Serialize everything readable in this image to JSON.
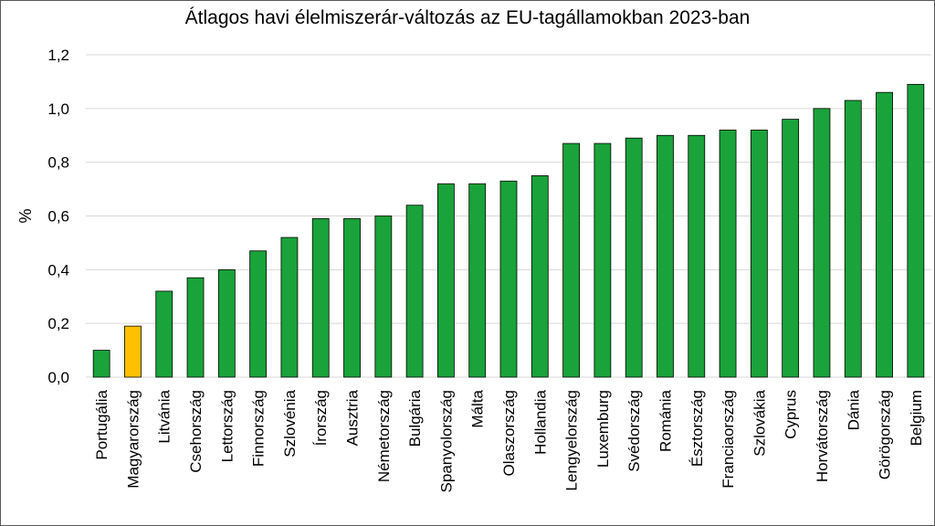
{
  "chart_data": {
    "type": "bar",
    "title": "Átlagos havi élelmiszerár-változás az EU-tagállamokban 2023-ban",
    "xlabel": "",
    "ylabel": "%",
    "ylim": [
      0,
      1.2
    ],
    "yticks": [
      "0,0",
      "0,2",
      "0,4",
      "0,6",
      "0,8",
      "1,0",
      "1,2"
    ],
    "grid": true,
    "legend": "none",
    "categories": [
      "Portugália",
      "Magyarország",
      "Litvánia",
      "Csehország",
      "Lettország",
      "Finnország",
      "Szlovénia",
      "Írország",
      "Ausztria",
      "Németország",
      "Bulgária",
      "Spanyolország",
      "Málta",
      "Olaszország",
      "Hollandia",
      "Lengyelország",
      "Luxemburg",
      "Svédország",
      "Románia",
      "Észtország",
      "Franciaország",
      "Szlovákia",
      "Cyprus",
      "Horvátország",
      "Dánia",
      "Görögország",
      "Belgium"
    ],
    "values": [
      0.1,
      0.19,
      0.32,
      0.37,
      0.4,
      0.47,
      0.52,
      0.59,
      0.59,
      0.6,
      0.64,
      0.72,
      0.72,
      0.73,
      0.75,
      0.87,
      0.87,
      0.89,
      0.9,
      0.9,
      0.92,
      0.92,
      0.96,
      1.0,
      1.03,
      1.06,
      1.09
    ],
    "colors": {
      "default": "#19A33A",
      "highlight": "#FFC000"
    },
    "highlight_category": "Magyarország"
  }
}
